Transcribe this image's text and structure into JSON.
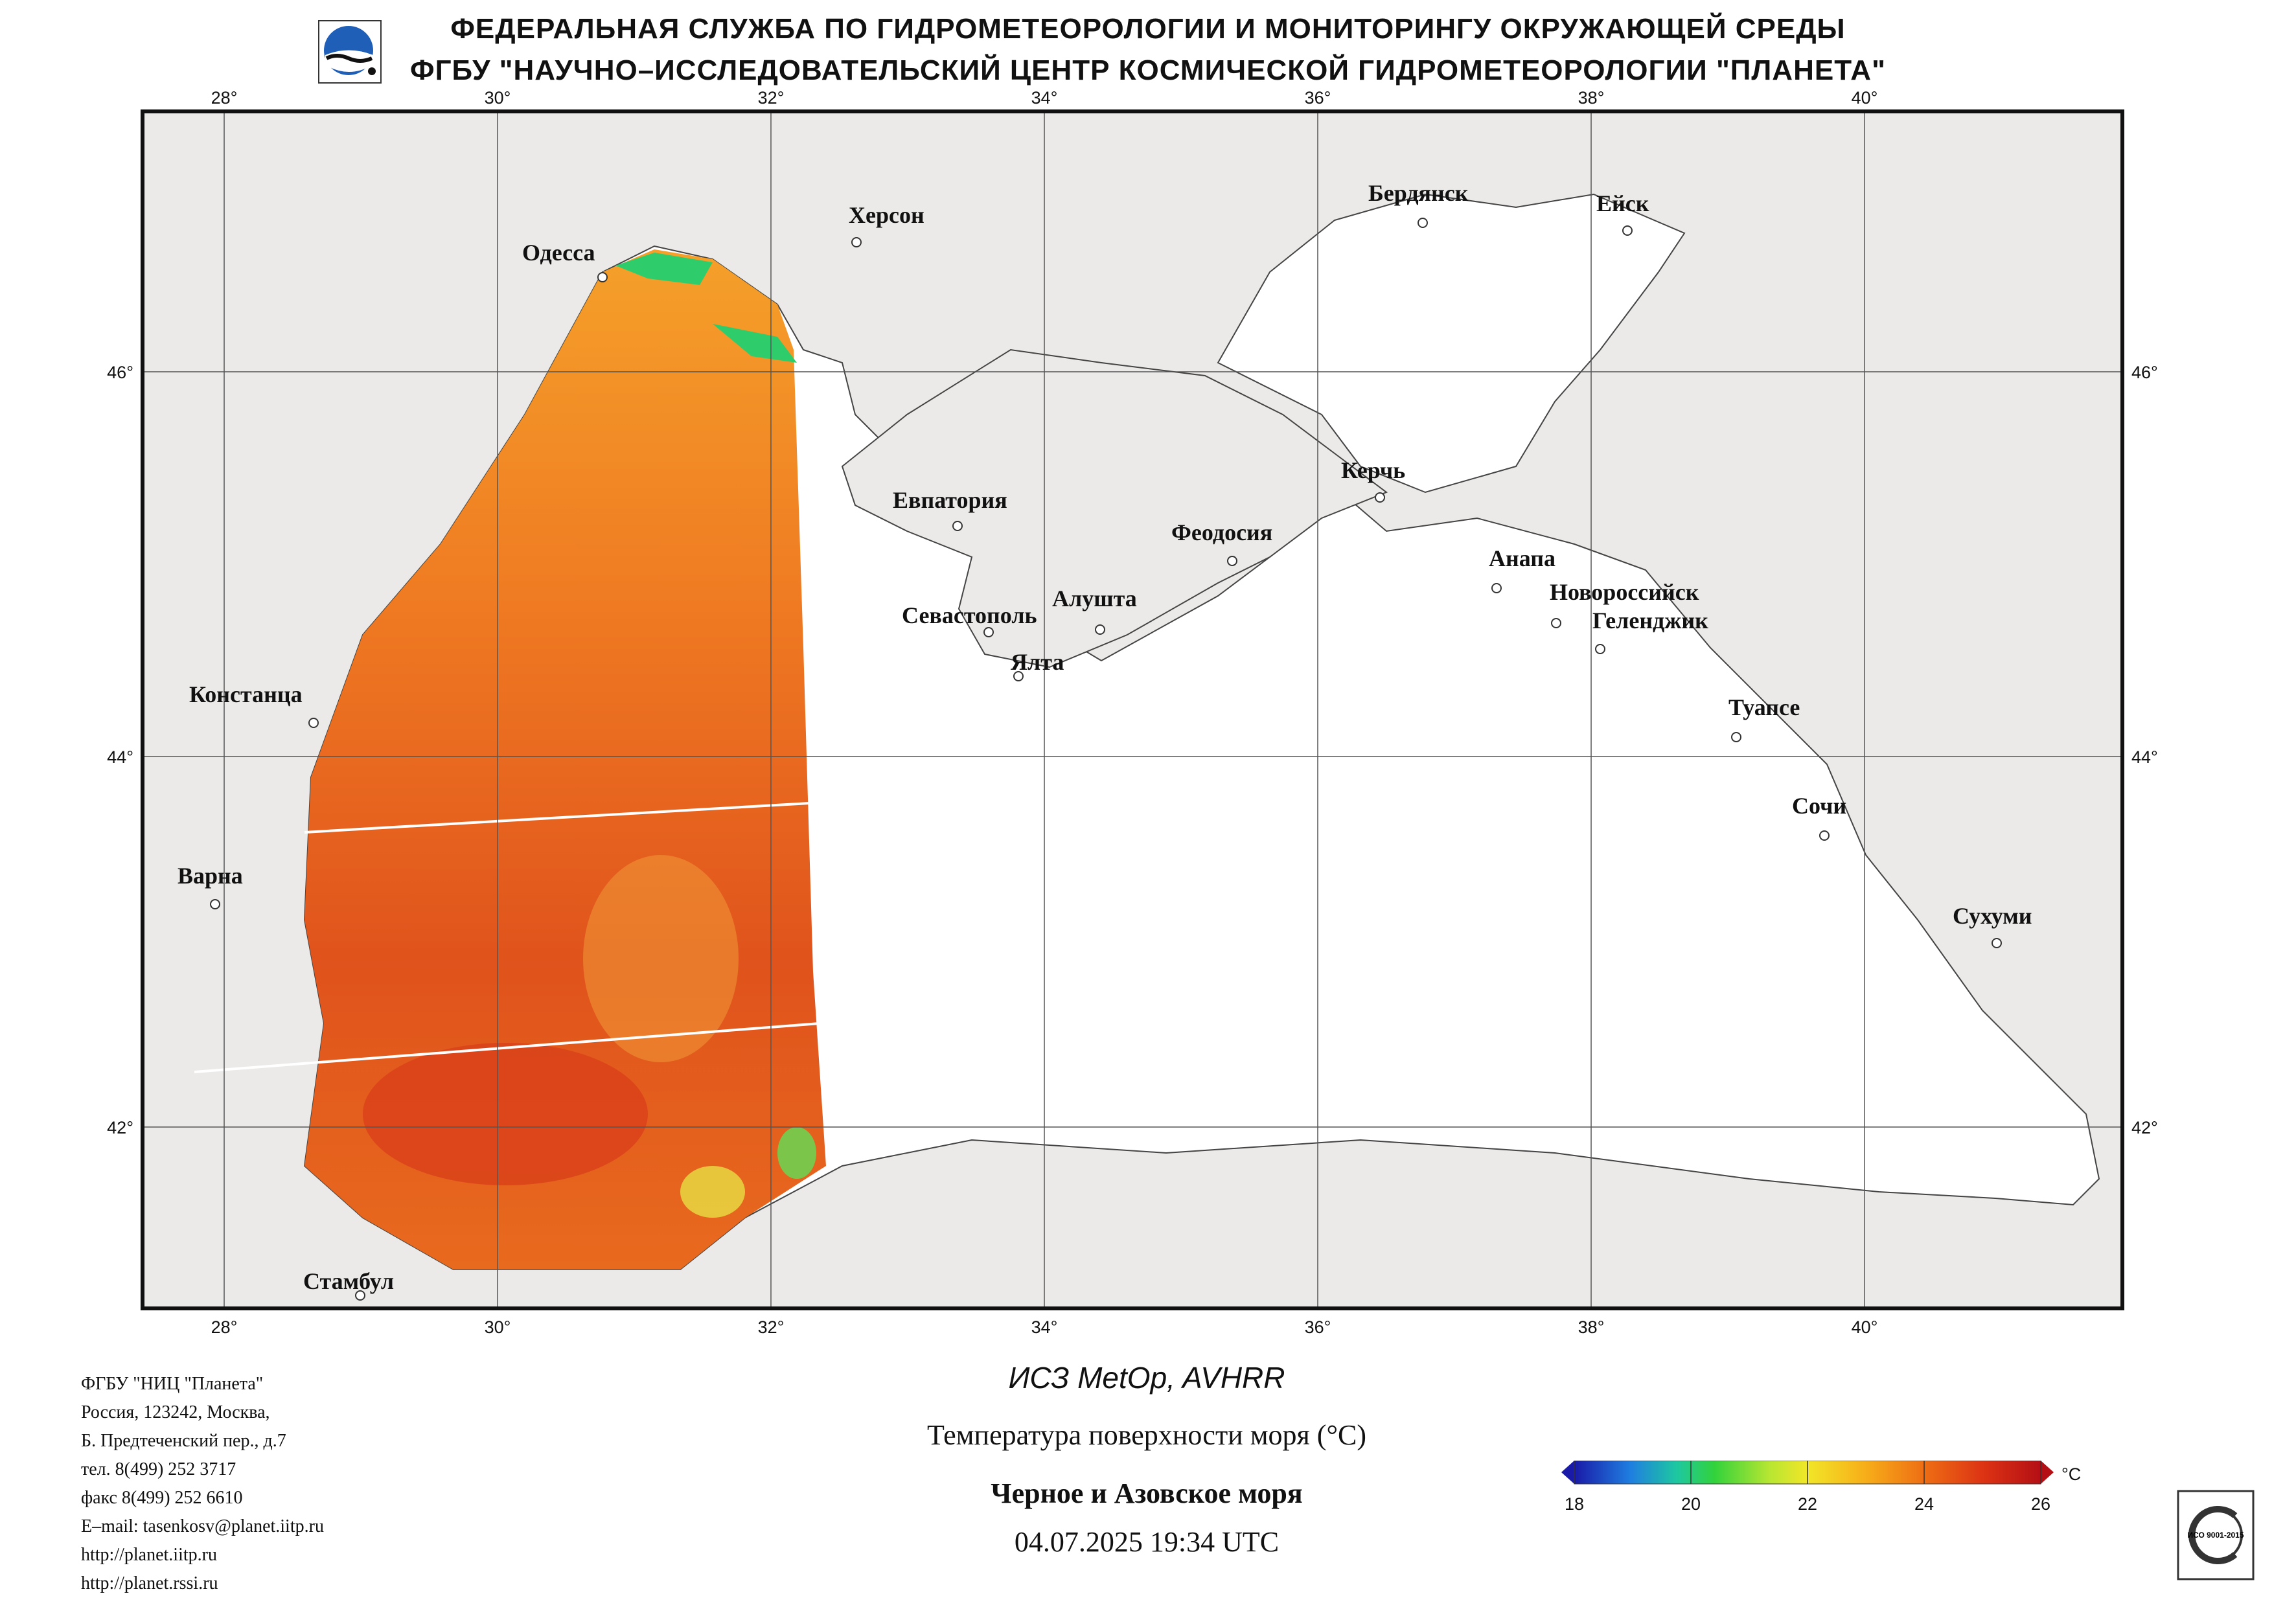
{
  "header": {
    "line1": "ФЕДЕРАЛЬНАЯ СЛУЖБА ПО ГИДРОМЕТЕОРОЛОГИИ И МОНИТОРИНГУ ОКРУЖАЮЩЕЙ СРЕДЫ",
    "line2": "ФГБУ \"НАУЧНО–ИССЛЕДОВАТЕЛЬСКИЙ ЦЕНТР КОСМИЧЕСКОЙ ГИДРОМЕТЕОРОЛОГИИ \"ПЛАНЕТА\""
  },
  "map": {
    "lon_ticks": [
      "28°",
      "30°",
      "32°",
      "34°",
      "36°",
      "38°",
      "40°"
    ],
    "lat_ticks": [
      "46°",
      "44°",
      "42°"
    ],
    "colors": {
      "land": "#eceae8",
      "sea_nodata": "#ffffff",
      "grid": "#555555",
      "coast": "#444444"
    },
    "cities": [
      {
        "name": "Одесса"
      },
      {
        "name": "Херсон"
      },
      {
        "name": "Бердянск"
      },
      {
        "name": "Ейск"
      },
      {
        "name": "Евпатория"
      },
      {
        "name": "Керчь"
      },
      {
        "name": "Феодосия"
      },
      {
        "name": "Анапа"
      },
      {
        "name": "Новороссийск"
      },
      {
        "name": "Геленджик"
      },
      {
        "name": "Алушта"
      },
      {
        "name": "Севастополь"
      },
      {
        "name": "Ялта"
      },
      {
        "name": "Констанца"
      },
      {
        "name": "Туапсе"
      },
      {
        "name": "Сочи"
      },
      {
        "name": "Варна"
      },
      {
        "name": "Сухуми"
      },
      {
        "name": "Стамбул"
      }
    ]
  },
  "footer_left": [
    "ФГБУ \"НИЦ \"Планета\"",
    "Россия, 123242, Москва,",
    "Б. Предтеченский пер., д.7",
    "тел. 8(499) 252 3717",
    "факс 8(499) 252 6610",
    "E–mail: tasenkosv@planet.iitp.ru",
    "http://planet.iitp.ru",
    "http://planet.rssi.ru"
  ],
  "caption": {
    "satellite": "ИСЗ MetOp, AVHRR",
    "parameter": "Температура поверхности моря (°C)",
    "region": "Черное и Азовское моря",
    "datetime": "04.07.2025 19:34 UTC"
  },
  "colorbar": {
    "unit": "°C",
    "labels": [
      "18",
      "20",
      "22",
      "24",
      "26"
    ],
    "min": 18,
    "max": 26,
    "colors": [
      "#1a1aa8",
      "#1f7ee0",
      "#1ec8a0",
      "#32d23c",
      "#b9e632",
      "#f2e628",
      "#f7b019",
      "#ee6e14",
      "#dc3214",
      "#b40f14"
    ]
  },
  "sst_colors": {
    "cool": "#2ecc6a",
    "mid": "#f2c23a",
    "warm": "#ef7a22",
    "hot": "#d9401a"
  },
  "certificate": "ИСО 9001-2015"
}
